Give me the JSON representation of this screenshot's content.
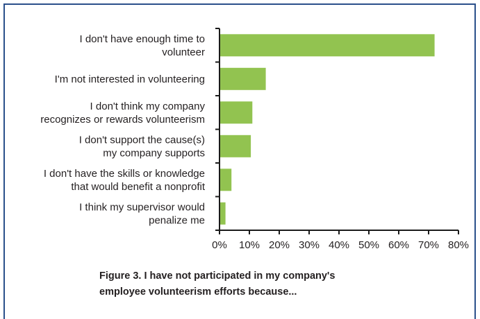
{
  "chart_data": {
    "type": "bar",
    "orientation": "horizontal",
    "categories": [
      [
        "I don't have enough time to",
        "volunteer"
      ],
      [
        "I'm not interested in volunteering"
      ],
      [
        "I don't think my company",
        "recognizes or rewards volunteerism"
      ],
      [
        "I don't support the cause(s)",
        "my company supports"
      ],
      [
        "I don't have the skills or knowledge",
        "that would benefit a nonprofit"
      ],
      [
        "I think my supervisor would",
        "penalize me"
      ]
    ],
    "values": [
      72,
      15.5,
      11,
      10.5,
      4,
      2
    ],
    "value_format": "percent",
    "xlim": [
      0,
      80
    ],
    "xticks": [
      0,
      10,
      20,
      30,
      40,
      50,
      60,
      70,
      80
    ],
    "xtick_labels": [
      "0%",
      "10%",
      "20%",
      "30%",
      "40%",
      "50%",
      "60%",
      "70%",
      "80%"
    ],
    "title": "",
    "xlabel": "",
    "ylabel": "",
    "grid": false,
    "legend": "none",
    "bar_color": "#92c350",
    "axis_color": "#1a1a1a"
  },
  "caption": {
    "line1": "Figure 3. I have not participated in my company's",
    "line2": "employee volunteerism efforts because..."
  },
  "colors": {
    "frame_border": "#2a4f8a",
    "text": "#231f20"
  }
}
